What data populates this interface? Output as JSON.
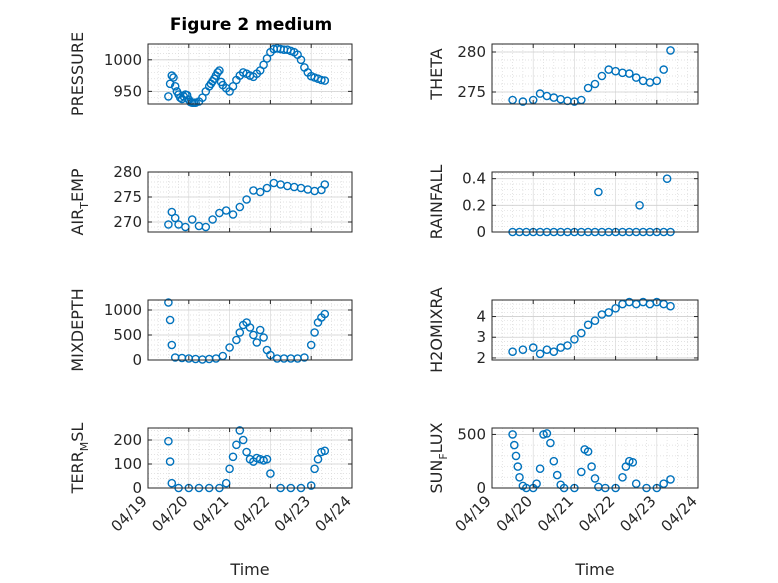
{
  "figure": {
    "title": "Figure 2 medium",
    "marker_color": "#0072bd"
  },
  "chart_data": [
    {
      "type": "scatter",
      "ylabel": "PRESSURE",
      "xlabel": "",
      "ylim": [
        930,
        1025
      ],
      "yticks": [
        950,
        1000
      ],
      "xlim": [
        "2022-04-19",
        "2022-04-24"
      ],
      "grid": true,
      "x": [
        "04/19 12:00",
        "04/19 13:00",
        "04/19 14:00",
        "04/19 15:00",
        "04/19 16:00",
        "04/19 17:00",
        "04/19 18:00",
        "04/19 19:00",
        "04/19 20:00",
        "04/19 21:00",
        "04/19 22:00",
        "04/19 23:00",
        "04/20 00:00",
        "04/20 01:00",
        "04/20 02:00",
        "04/20 03:00",
        "04/20 04:00",
        "04/20 06:00",
        "04/20 08:00",
        "04/20 10:00",
        "04/20 12:00",
        "04/20 13:00",
        "04/20 14:00",
        "04/20 15:00",
        "04/20 16:00",
        "04/20 17:00",
        "04/20 18:00",
        "04/20 19:00",
        "04/20 20:00",
        "04/20 22:00",
        "04/21 00:00",
        "04/21 02:00",
        "04/21 04:00",
        "04/21 06:00",
        "04/21 08:00",
        "04/21 10:00",
        "04/21 12:00",
        "04/21 14:00",
        "04/21 16:00",
        "04/21 18:00",
        "04/21 20:00",
        "04/21 22:00",
        "04/22 00:00",
        "04/22 02:00",
        "04/22 04:00",
        "04/22 06:00",
        "04/22 08:00",
        "04/22 10:00",
        "04/22 12:00",
        "04/22 14:00",
        "04/22 16:00",
        "04/22 18:00",
        "04/22 20:00",
        "04/22 22:00",
        "04/23 00:00",
        "04/23 02:00",
        "04/23 04:00",
        "04/23 06:00",
        "04/23 08:00"
      ],
      "y": [
        942,
        962,
        975,
        972,
        958,
        950,
        945,
        940,
        938,
        942,
        945,
        944,
        937,
        933,
        932,
        932,
        932,
        934,
        940,
        950,
        958,
        962,
        966,
        970,
        975,
        980,
        983,
        965,
        960,
        955,
        950,
        958,
        968,
        975,
        980,
        978,
        975,
        973,
        978,
        983,
        992,
        1002,
        1012,
        1017,
        1018,
        1017,
        1016,
        1016,
        1014,
        1012,
        1008,
        1000,
        988,
        980,
        974,
        972,
        970,
        968,
        967
      ]
    },
    {
      "type": "scatter",
      "ylabel": "THETA",
      "xlabel": "",
      "ylim": [
        273.5,
        281
      ],
      "yticks": [
        275,
        280
      ],
      "xlim": [
        "2022-04-19",
        "2022-04-24"
      ],
      "grid": true,
      "x": [
        "04/19 12:00",
        "04/19 18:00",
        "04/20 00:00",
        "04/20 04:00",
        "04/20 08:00",
        "04/20 12:00",
        "04/20 16:00",
        "04/20 20:00",
        "04/21 00:00",
        "04/21 04:00",
        "04/21 08:00",
        "04/21 12:00",
        "04/21 16:00",
        "04/21 20:00",
        "04/22 00:00",
        "04/22 04:00",
        "04/22 08:00",
        "04/22 12:00",
        "04/22 16:00",
        "04/22 20:00",
        "04/23 00:00",
        "04/23 04:00",
        "04/23 08:00"
      ],
      "y": [
        274.0,
        273.8,
        274.0,
        274.8,
        274.5,
        274.3,
        274.1,
        273.9,
        273.8,
        274.0,
        275.5,
        276.0,
        277.0,
        277.8,
        277.6,
        277.4,
        277.3,
        276.8,
        276.4,
        276.2,
        276.4,
        277.8,
        280.2
      ]
    },
    {
      "type": "scatter",
      "ylabel": "AIR_TEMP",
      "xlabel": "",
      "ylim": [
        268,
        280
      ],
      "yticks": [
        270,
        275,
        280
      ],
      "xlim": [
        "2022-04-19",
        "2022-04-24"
      ],
      "grid": true,
      "x": [
        "04/19 12:00",
        "04/19 14:00",
        "04/19 16:00",
        "04/19 18:00",
        "04/19 22:00",
        "04/20 02:00",
        "04/20 06:00",
        "04/20 10:00",
        "04/20 14:00",
        "04/20 18:00",
        "04/20 22:00",
        "04/21 02:00",
        "04/21 06:00",
        "04/21 10:00",
        "04/21 14:00",
        "04/21 18:00",
        "04/21 22:00",
        "04/22 02:00",
        "04/22 06:00",
        "04/22 10:00",
        "04/22 14:00",
        "04/22 18:00",
        "04/22 22:00",
        "04/23 02:00",
        "04/23 06:00",
        "04/23 08:00"
      ],
      "y": [
        269.5,
        272.0,
        270.8,
        269.5,
        269.0,
        270.5,
        269.2,
        269.0,
        270.5,
        271.8,
        272.3,
        271.5,
        273.0,
        274.5,
        276.3,
        276.0,
        276.8,
        277.8,
        277.5,
        277.2,
        277.0,
        276.8,
        276.5,
        276.2,
        276.4,
        277.5
      ]
    },
    {
      "type": "scatter",
      "ylabel": "RAINFALL",
      "xlabel": "",
      "ylim": [
        0,
        0.45
      ],
      "yticks": [
        0,
        0.2,
        0.4
      ],
      "xlim": [
        "2022-04-19",
        "2022-04-24"
      ],
      "grid": true,
      "x": [
        "04/19 12:00",
        "04/19 16:00",
        "04/19 20:00",
        "04/20 00:00",
        "04/20 04:00",
        "04/20 08:00",
        "04/20 12:00",
        "04/20 16:00",
        "04/20 20:00",
        "04/21 00:00",
        "04/21 04:00",
        "04/21 08:00",
        "04/21 12:00",
        "04/21 14:00",
        "04/21 16:00",
        "04/21 20:00",
        "04/22 00:00",
        "04/22 04:00",
        "04/22 08:00",
        "04/22 12:00",
        "04/22 14:00",
        "04/22 16:00",
        "04/22 20:00",
        "04/23 00:00",
        "04/23 04:00",
        "04/23 06:00",
        "04/23 08:00"
      ],
      "y": [
        0,
        0,
        0,
        0,
        0,
        0,
        0,
        0,
        0,
        0,
        0,
        0,
        0,
        0.3,
        0,
        0,
        0,
        0,
        0,
        0,
        0.2,
        0,
        0,
        0,
        0,
        0.4,
        0
      ]
    },
    {
      "type": "scatter",
      "ylabel": "MIXDEPTH",
      "xlabel": "",
      "ylim": [
        0,
        1200
      ],
      "yticks": [
        0,
        500,
        1000
      ],
      "xlim": [
        "2022-04-19",
        "2022-04-24"
      ],
      "grid": true,
      "x": [
        "04/19 12:00",
        "04/19 13:00",
        "04/19 14:00",
        "04/19 16:00",
        "04/19 20:00",
        "04/20 00:00",
        "04/20 04:00",
        "04/20 08:00",
        "04/20 12:00",
        "04/20 16:00",
        "04/20 20:00",
        "04/21 00:00",
        "04/21 04:00",
        "04/21 06:00",
        "04/21 08:00",
        "04/21 10:00",
        "04/21 12:00",
        "04/21 14:00",
        "04/21 16:00",
        "04/21 18:00",
        "04/21 20:00",
        "04/21 22:00",
        "04/22 00:00",
        "04/22 04:00",
        "04/22 08:00",
        "04/22 12:00",
        "04/22 16:00",
        "04/22 20:00",
        "04/23 00:00",
        "04/23 02:00",
        "04/23 04:00",
        "04/23 06:00",
        "04/23 08:00"
      ],
      "y": [
        1150,
        800,
        300,
        50,
        40,
        30,
        20,
        10,
        20,
        30,
        80,
        250,
        400,
        550,
        700,
        750,
        650,
        500,
        350,
        600,
        450,
        200,
        100,
        30,
        30,
        30,
        30,
        50,
        300,
        550,
        750,
        850,
        920
      ]
    },
    {
      "type": "scatter",
      "ylabel": "H2OMIXRA",
      "xlabel": "",
      "ylim": [
        1.9,
        4.8
      ],
      "yticks": [
        2,
        3,
        4
      ],
      "xlim": [
        "2022-04-19",
        "2022-04-24"
      ],
      "grid": true,
      "x": [
        "04/19 12:00",
        "04/19 18:00",
        "04/20 00:00",
        "04/20 04:00",
        "04/20 08:00",
        "04/20 12:00",
        "04/20 16:00",
        "04/20 20:00",
        "04/21 00:00",
        "04/21 04:00",
        "04/21 08:00",
        "04/21 12:00",
        "04/21 16:00",
        "04/21 20:00",
        "04/22 00:00",
        "04/22 04:00",
        "04/22 08:00",
        "04/22 12:00",
        "04/22 16:00",
        "04/22 20:00",
        "04/23 00:00",
        "04/23 04:00",
        "04/23 08:00"
      ],
      "y": [
        2.3,
        2.4,
        2.5,
        2.2,
        2.4,
        2.3,
        2.5,
        2.6,
        2.9,
        3.2,
        3.6,
        3.8,
        4.1,
        4.2,
        4.4,
        4.6,
        4.7,
        4.6,
        4.7,
        4.6,
        4.7,
        4.6,
        4.5
      ]
    },
    {
      "type": "scatter",
      "ylabel": "TERR_MSL",
      "xlabel": "Time",
      "ylim": [
        0,
        250
      ],
      "yticks": [
        0,
        100,
        200
      ],
      "xlim": [
        "2022-04-19",
        "2022-04-24"
      ],
      "xticks": [
        "04/19",
        "04/20",
        "04/21",
        "04/22",
        "04/23",
        "04/24"
      ],
      "grid": true,
      "x": [
        "04/19 12:00",
        "04/19 13:00",
        "04/19 14:00",
        "04/19 18:00",
        "04/20 00:00",
        "04/20 06:00",
        "04/20 12:00",
        "04/20 18:00",
        "04/20 22:00",
        "04/21 00:00",
        "04/21 02:00",
        "04/21 04:00",
        "04/21 06:00",
        "04/21 08:00",
        "04/21 10:00",
        "04/21 12:00",
        "04/21 14:00",
        "04/21 16:00",
        "04/21 18:00",
        "04/21 20:00",
        "04/21 22:00",
        "04/22 00:00",
        "04/22 06:00",
        "04/22 12:00",
        "04/22 18:00",
        "04/23 00:00",
        "04/23 02:00",
        "04/23 04:00",
        "04/23 06:00",
        "04/23 08:00"
      ],
      "y": [
        195,
        110,
        20,
        0,
        0,
        0,
        0,
        0,
        20,
        80,
        130,
        180,
        240,
        200,
        150,
        120,
        110,
        125,
        120,
        115,
        120,
        60,
        0,
        0,
        0,
        10,
        80,
        120,
        150,
        155
      ]
    },
    {
      "type": "scatter",
      "ylabel": "SUN_FLUX",
      "xlabel": "Time",
      "ylim": [
        0,
        560
      ],
      "yticks": [
        0,
        500
      ],
      "xlim": [
        "2022-04-19",
        "2022-04-24"
      ],
      "xticks": [
        "04/19",
        "04/20",
        "04/21",
        "04/22",
        "04/23",
        "04/24"
      ],
      "grid": true,
      "x": [
        "04/19 12:00",
        "04/19 13:00",
        "04/19 14:00",
        "04/19 15:00",
        "04/19 16:00",
        "04/19 18:00",
        "04/19 20:00",
        "04/20 00:00",
        "04/20 02:00",
        "04/20 04:00",
        "04/20 06:00",
        "04/20 08:00",
        "04/20 10:00",
        "04/20 12:00",
        "04/20 14:00",
        "04/20 16:00",
        "04/20 18:00",
        "04/21 00:00",
        "04/21 04:00",
        "04/21 06:00",
        "04/21 08:00",
        "04/21 10:00",
        "04/21 12:00",
        "04/21 14:00",
        "04/21 18:00",
        "04/22 00:00",
        "04/22 04:00",
        "04/22 06:00",
        "04/22 08:00",
        "04/22 10:00",
        "04/22 12:00",
        "04/22 18:00",
        "04/23 00:00",
        "04/23 04:00",
        "04/23 08:00"
      ],
      "y": [
        500,
        400,
        300,
        200,
        100,
        20,
        0,
        0,
        40,
        180,
        500,
        510,
        420,
        250,
        120,
        30,
        0,
        0,
        150,
        360,
        340,
        200,
        90,
        10,
        0,
        0,
        100,
        200,
        250,
        240,
        40,
        0,
        0,
        40,
        80
      ]
    }
  ]
}
